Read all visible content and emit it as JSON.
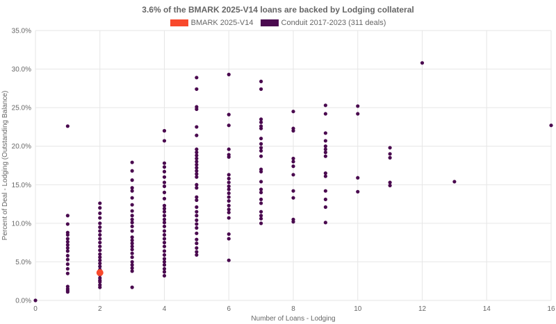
{
  "chart_data": {
    "type": "scatter",
    "title": "3.6% of the BMARK 2025-V14 loans are backed by Lodging collateral",
    "xlabel": "Number of Loans - Lodging",
    "ylabel": "Percent of Deal - Lodging (Outstanding Balance)",
    "xlim": [
      0,
      16
    ],
    "ylim": [
      0,
      35
    ],
    "x_ticks": [
      0,
      2,
      4,
      6,
      8,
      10,
      12,
      14,
      16
    ],
    "x_tick_labels": [
      "0",
      "2",
      "4",
      "6",
      "8",
      "10",
      "12",
      "14",
      "16"
    ],
    "y_ticks": [
      0,
      5,
      10,
      15,
      20,
      25,
      30,
      35
    ],
    "y_tick_labels": [
      "0.0%",
      "5.0%",
      "10.0%",
      "15.0%",
      "20.0%",
      "25.0%",
      "30.0%",
      "35.0%"
    ],
    "grid": true,
    "legend_position": "top-center",
    "series": [
      {
        "name": "BMARK 2025-V14",
        "color": "#F8492C",
        "marker_size": "large",
        "points": [
          [
            2,
            3.6
          ]
        ]
      },
      {
        "name": "Conduit 2017-2023 (311 deals)",
        "color": "#4A0A4F",
        "marker_size": "small",
        "points": [
          [
            0,
            0.0
          ],
          [
            1,
            22.6
          ],
          [
            1,
            11.0
          ],
          [
            1,
            9.9
          ],
          [
            1,
            8.8
          ],
          [
            1,
            8.5
          ],
          [
            1,
            8.0
          ],
          [
            1,
            7.6
          ],
          [
            1,
            7.2
          ],
          [
            1,
            6.8
          ],
          [
            1,
            6.4
          ],
          [
            1,
            5.8
          ],
          [
            1,
            5.3
          ],
          [
            1,
            4.7
          ],
          [
            1,
            4.1
          ],
          [
            1,
            3.5
          ],
          [
            1,
            1.8
          ],
          [
            1,
            1.5
          ],
          [
            1,
            1.3
          ],
          [
            1,
            1.1
          ],
          [
            2,
            12.6
          ],
          [
            2,
            12.0
          ],
          [
            2,
            11.3
          ],
          [
            2,
            10.7
          ],
          [
            2,
            10.0
          ],
          [
            2,
            9.5
          ],
          [
            2,
            9.0
          ],
          [
            2,
            8.5
          ],
          [
            2,
            8.0
          ],
          [
            2,
            7.5
          ],
          [
            2,
            7.0
          ],
          [
            2,
            6.5
          ],
          [
            2,
            6.0
          ],
          [
            2,
            5.6
          ],
          [
            2,
            5.2
          ],
          [
            2,
            4.8
          ],
          [
            2,
            4.4
          ],
          [
            2,
            4.0
          ],
          [
            2,
            3.3
          ],
          [
            2,
            2.9
          ],
          [
            2,
            2.6
          ],
          [
            2,
            2.4
          ],
          [
            2,
            2.0
          ],
          [
            2,
            1.7
          ],
          [
            3,
            17.9
          ],
          [
            3,
            16.8
          ],
          [
            3,
            15.6
          ],
          [
            3,
            14.6
          ],
          [
            3,
            14.2
          ],
          [
            3,
            13.3
          ],
          [
            3,
            12.4
          ],
          [
            3,
            11.6
          ],
          [
            3,
            11.0
          ],
          [
            3,
            10.5
          ],
          [
            3,
            10.1
          ],
          [
            3,
            9.6
          ],
          [
            3,
            9.0
          ],
          [
            3,
            8.2
          ],
          [
            3,
            7.8
          ],
          [
            3,
            7.4
          ],
          [
            3,
            7.0
          ],
          [
            3,
            6.6
          ],
          [
            3,
            6.1
          ],
          [
            3,
            5.6
          ],
          [
            3,
            5.0
          ],
          [
            3,
            4.6
          ],
          [
            3,
            4.2
          ],
          [
            3,
            3.8
          ],
          [
            3,
            1.7
          ],
          [
            4,
            22.0
          ],
          [
            4,
            20.7
          ],
          [
            4,
            17.8
          ],
          [
            4,
            17.3
          ],
          [
            4,
            16.7
          ],
          [
            4,
            16.0
          ],
          [
            4,
            15.3
          ],
          [
            4,
            14.8
          ],
          [
            4,
            14.0
          ],
          [
            4,
            13.2
          ],
          [
            4,
            12.3
          ],
          [
            4,
            11.9
          ],
          [
            4,
            11.5
          ],
          [
            4,
            11.0
          ],
          [
            4,
            10.5
          ],
          [
            4,
            10.1
          ],
          [
            4,
            9.6
          ],
          [
            4,
            9.0
          ],
          [
            4,
            8.5
          ],
          [
            4,
            8.0
          ],
          [
            4,
            7.5
          ],
          [
            4,
            7.0
          ],
          [
            4,
            6.4
          ],
          [
            4,
            5.9
          ],
          [
            4,
            5.4
          ],
          [
            4,
            5.0
          ],
          [
            4,
            4.6
          ],
          [
            4,
            4.1
          ],
          [
            4,
            3.7
          ],
          [
            4,
            3.2
          ],
          [
            5,
            28.9
          ],
          [
            5,
            27.4
          ],
          [
            5,
            25.1
          ],
          [
            5,
            24.8
          ],
          [
            5,
            22.5
          ],
          [
            5,
            21.4
          ],
          [
            5,
            19.6
          ],
          [
            5,
            19.2
          ],
          [
            5,
            18.8
          ],
          [
            5,
            18.4
          ],
          [
            5,
            18.0
          ],
          [
            5,
            17.6
          ],
          [
            5,
            17.2
          ],
          [
            5,
            16.8
          ],
          [
            5,
            16.4
          ],
          [
            5,
            16.0
          ],
          [
            5,
            15.0
          ],
          [
            5,
            14.6
          ],
          [
            5,
            13.4
          ],
          [
            5,
            13.0
          ],
          [
            5,
            12.1
          ],
          [
            5,
            11.5
          ],
          [
            5,
            11.0
          ],
          [
            5,
            10.4
          ],
          [
            5,
            9.9
          ],
          [
            5,
            9.4
          ],
          [
            5,
            8.7
          ],
          [
            5,
            7.9
          ],
          [
            5,
            7.4
          ],
          [
            5,
            6.8
          ],
          [
            5,
            6.3
          ],
          [
            5,
            5.9
          ],
          [
            6,
            29.3
          ],
          [
            6,
            24.1
          ],
          [
            6,
            22.7
          ],
          [
            6,
            19.6
          ],
          [
            6,
            18.9
          ],
          [
            6,
            18.6
          ],
          [
            6,
            16.3
          ],
          [
            6,
            15.8
          ],
          [
            6,
            15.3
          ],
          [
            6,
            14.8
          ],
          [
            6,
            14.4
          ],
          [
            6,
            13.9
          ],
          [
            6,
            13.4
          ],
          [
            6,
            12.9
          ],
          [
            6,
            12.3
          ],
          [
            6,
            11.8
          ],
          [
            6,
            11.4
          ],
          [
            6,
            10.7
          ],
          [
            6,
            8.6
          ],
          [
            6,
            8.0
          ],
          [
            6,
            5.2
          ],
          [
            7,
            28.4
          ],
          [
            7,
            27.4
          ],
          [
            7,
            23.5
          ],
          [
            7,
            23.1
          ],
          [
            7,
            22.6
          ],
          [
            7,
            22.3
          ],
          [
            7,
            21.0
          ],
          [
            7,
            20.3
          ],
          [
            7,
            19.8
          ],
          [
            7,
            19.4
          ],
          [
            7,
            18.7
          ],
          [
            7,
            17.0
          ],
          [
            7,
            16.7
          ],
          [
            7,
            15.4
          ],
          [
            7,
            14.4
          ],
          [
            7,
            14.0
          ],
          [
            7,
            13.1
          ],
          [
            7,
            12.6
          ],
          [
            7,
            11.5
          ],
          [
            7,
            11.0
          ],
          [
            7,
            10.6
          ],
          [
            7,
            10.0
          ],
          [
            8,
            24.5
          ],
          [
            8,
            22.3
          ],
          [
            8,
            22.0
          ],
          [
            8,
            18.4
          ],
          [
            8,
            18.0
          ],
          [
            8,
            17.4
          ],
          [
            8,
            16.3
          ],
          [
            8,
            14.2
          ],
          [
            8,
            13.3
          ],
          [
            8,
            10.5
          ],
          [
            8,
            10.2
          ],
          [
            9,
            25.3
          ],
          [
            9,
            24.2
          ],
          [
            9,
            21.7
          ],
          [
            9,
            20.7
          ],
          [
            9,
            20.0
          ],
          [
            9,
            19.6
          ],
          [
            9,
            19.2
          ],
          [
            9,
            18.7
          ],
          [
            9,
            16.5
          ],
          [
            9,
            16.1
          ],
          [
            9,
            14.2
          ],
          [
            9,
            13.1
          ],
          [
            9,
            12.1
          ],
          [
            9,
            10.1
          ],
          [
            10,
            25.2
          ],
          [
            10,
            24.2
          ],
          [
            10,
            15.9
          ],
          [
            10,
            14.1
          ],
          [
            11,
            19.8
          ],
          [
            11,
            19.0
          ],
          [
            11,
            18.5
          ],
          [
            11,
            15.3
          ],
          [
            11,
            14.9
          ],
          [
            12,
            30.8
          ],
          [
            13,
            15.4
          ],
          [
            16,
            22.7
          ]
        ]
      }
    ]
  }
}
